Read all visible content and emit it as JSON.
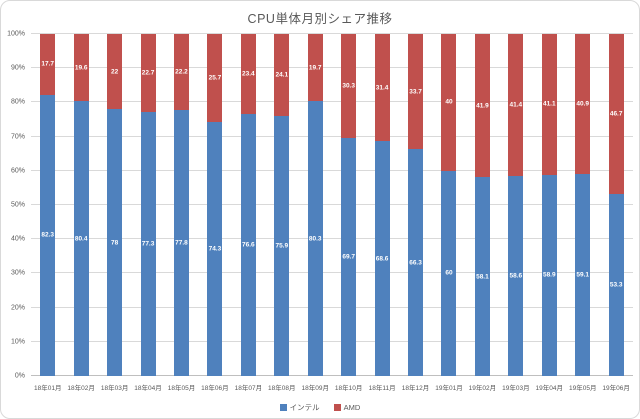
{
  "colors": {
    "intel": "#4f81bd",
    "amd": "#c0504d",
    "grid": "#d9d9d9",
    "axis_text": "#595959",
    "title_text": "#595959",
    "data_label_text": "#ffffff",
    "background": "#ffffff"
  },
  "legend": {
    "items": [
      {
        "label": "インテル",
        "color": "#4f81bd"
      },
      {
        "label": "AMD",
        "color": "#c0504d"
      }
    ]
  },
  "chart_data": {
    "type": "bar",
    "variant": "stacked-column-100",
    "title": "CPU単体月別シェア推移",
    "xlabel": "",
    "ylabel": "",
    "ylim": [
      0,
      100
    ],
    "y_ticks": [
      "0%",
      "10%",
      "20%",
      "30%",
      "40%",
      "50%",
      "60%",
      "70%",
      "80%",
      "90%",
      "100%"
    ],
    "grid": true,
    "legend_position": "bottom",
    "data_labels": "inside-center-white",
    "categories": [
      "18年01月",
      "18年02月",
      "18年03月",
      "18年04月",
      "18年05月",
      "18年06月",
      "18年07月",
      "18年08月",
      "18年09月",
      "18年10月",
      "18年11月",
      "18年12月",
      "19年01月",
      "19年02月",
      "19年03月",
      "19年04月",
      "19年05月",
      "19年06月"
    ],
    "series": [
      {
        "name": "インテル",
        "color": "#4f81bd",
        "values": [
          82.3,
          80.4,
          78,
          77.3,
          77.8,
          74.3,
          76.6,
          75.9,
          80.3,
          69.7,
          68.6,
          66.3,
          60,
          58.1,
          58.6,
          58.9,
          59.1,
          53.3
        ]
      },
      {
        "name": "AMD",
        "color": "#c0504d",
        "values": [
          17.7,
          19.6,
          22,
          22.7,
          22.2,
          25.7,
          23.4,
          24.1,
          19.7,
          30.3,
          31.4,
          33.7,
          40,
          41.9,
          41.4,
          41.1,
          40.9,
          46.7
        ]
      }
    ]
  }
}
